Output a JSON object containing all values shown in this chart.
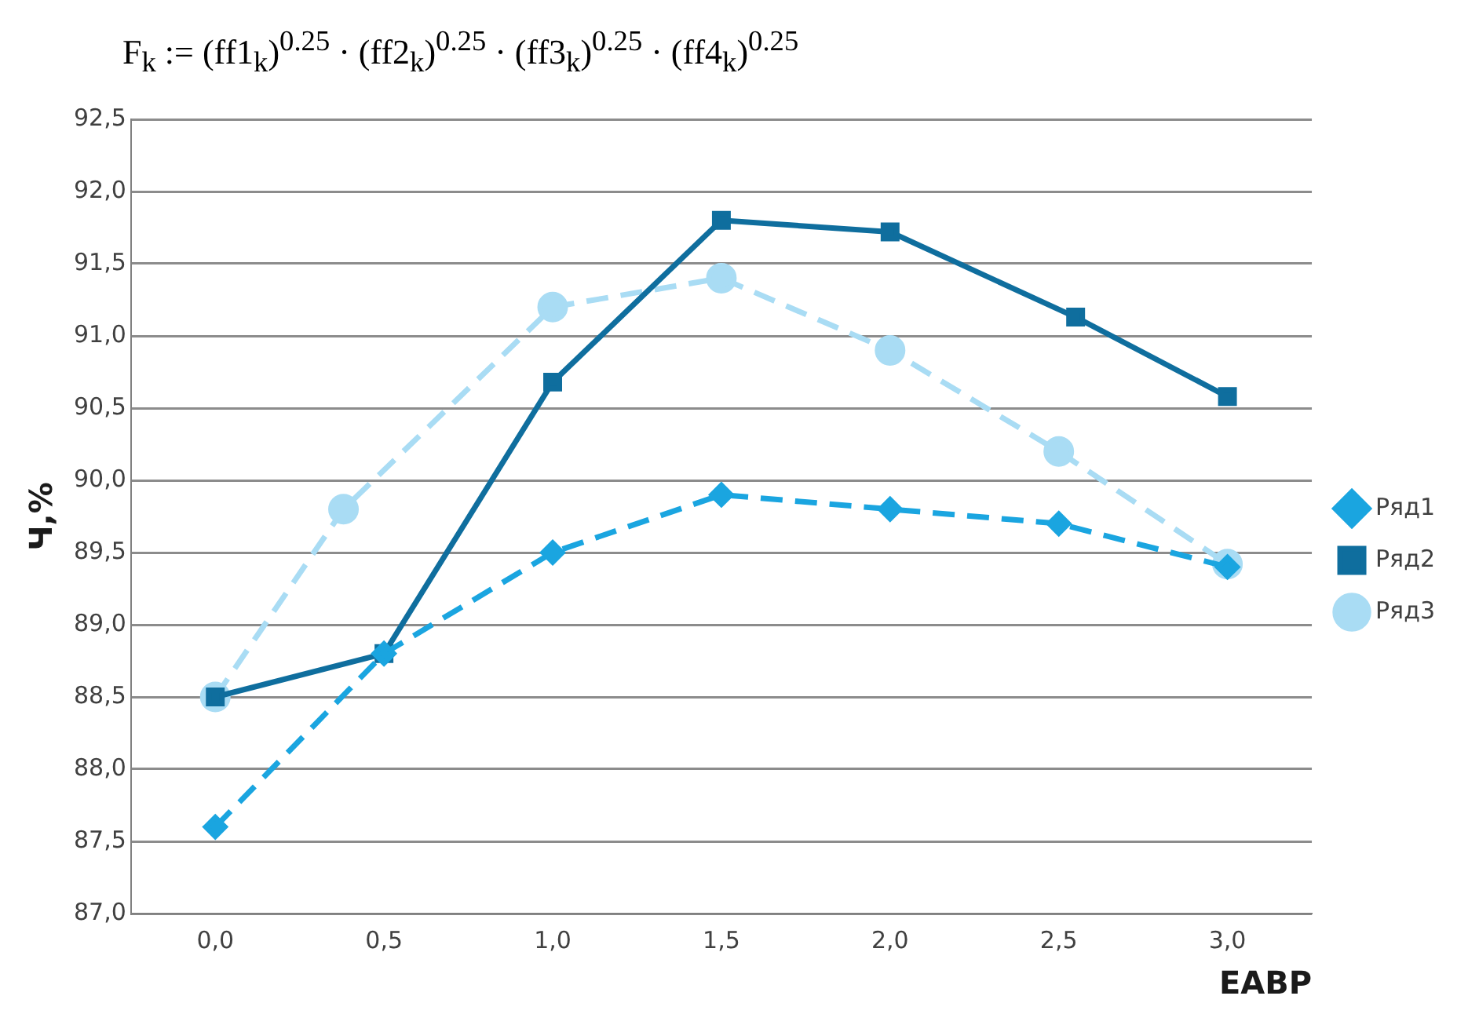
{
  "chart_data": {
    "type": "line",
    "title": "F$_{k}$ := (ff1$_{k}$)$^{0.25}$ · (ff2$_{k}$)$^{0.25}$ · (ff3$_{k}$)$^{0.25}$ · (ff4$_{k}$)$^{0.25}$",
    "xlabel": "ЕАВР",
    "ylabel": "Ч,%",
    "xlim": [
      -0.25,
      3.25
    ],
    "xticks": [
      {
        "value": 0,
        "label": "0,0"
      },
      {
        "value": 0.5,
        "label": "0,5"
      },
      {
        "value": 1,
        "label": "1,0"
      },
      {
        "value": 1.5,
        "label": "1,5"
      },
      {
        "value": 2,
        "label": "2,0"
      },
      {
        "value": 2.5,
        "label": "2,5"
      },
      {
        "value": 3,
        "label": "3,0"
      }
    ],
    "ylim": [
      87,
      92.5
    ],
    "yticks": [
      {
        "value": 87,
        "label": "87,0"
      },
      {
        "value": 87.5,
        "label": "87,5"
      },
      {
        "value": 88,
        "label": "88,0"
      },
      {
        "value": 88.5,
        "label": "88,5"
      },
      {
        "value": 89,
        "label": "89,0"
      },
      {
        "value": 89.5,
        "label": "89,5"
      },
      {
        "value": 90,
        "label": "90,0"
      },
      {
        "value": 90.5,
        "label": "90,5"
      },
      {
        "value": 91,
        "label": "91,0"
      },
      {
        "value": 91.5,
        "label": "91,5"
      },
      {
        "value": 92,
        "label": "92,0"
      },
      {
        "value": 92.5,
        "label": "92,5"
      }
    ],
    "grid": "y",
    "legend": "right",
    "series": [
      {
        "name": "Ряд1",
        "color": "#1aa5e0",
        "marker": "diamond",
        "line_style": "dashed",
        "x": [
          0,
          0.5,
          1,
          1.5,
          2,
          2.5,
          3
        ],
        "values": [
          87.6,
          88.8,
          89.5,
          89.9,
          89.8,
          89.7,
          89.4
        ]
      },
      {
        "name": "Ряд2",
        "color": "#0f6e9e",
        "marker": "square",
        "line_style": "solid",
        "x": [
          0,
          0.5,
          1,
          1.5,
          2,
          2.55,
          3
        ],
        "values": [
          88.5,
          88.8,
          90.68,
          91.8,
          91.72,
          91.13,
          90.58
        ]
      },
      {
        "name": "Ряд3",
        "color": "#a9dcf4",
        "marker": "circle",
        "line_style": "dashed",
        "x": [
          0,
          0.38,
          1,
          1.5,
          2,
          2.5,
          3
        ],
        "values": [
          88.5,
          89.8,
          91.2,
          91.4,
          90.9,
          90.2,
          89.42
        ]
      }
    ]
  }
}
